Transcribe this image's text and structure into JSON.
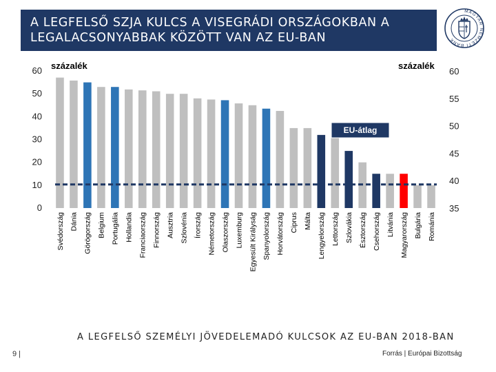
{
  "header": {
    "title_line1": "A LEGFELSŐ SZJA KULCS A VISEGRÁDI ORSZÁGOKBAN A",
    "title_line2": "LEGALACSONYABBAK KÖZÖTT VAN AZ EU-BAN"
  },
  "logo": {
    "name": "Magyar Nemzeti Bank",
    "text": "MAGYAR NEMZETI BANK"
  },
  "footer": {
    "subtitle": "A LEGFELSŐ SZEMÉLYI JÖVEDELEMADÓ KULCSOK AZ EU-BAN 2018-BAN",
    "page": "9 |",
    "source": "Forrás | Európai Bizottság"
  },
  "colors": {
    "gray": "#bfbfbf",
    "blue": "#2e75b6",
    "navy": "#1f3864",
    "red": "#ff0000",
    "title_bg": "#1f3864"
  },
  "chart_data": {
    "type": "bar",
    "title": "A LEGFELSŐ SZEMÉLYI JÖVEDELEMADÓ KULCSOK AZ EU-BAN 2018-BAN",
    "ylabel": "százalék",
    "ylabel_right": "százalék",
    "ylim": [
      0,
      60
    ],
    "yticks": [
      0,
      10,
      20,
      30,
      40,
      50,
      60
    ],
    "ylim_right": [
      35,
      60
    ],
    "yticks_right": [
      35,
      40,
      45,
      50,
      55,
      60
    ],
    "categories": [
      "Svédország",
      "Dánia",
      "Görögország",
      "Belgium",
      "Portugália",
      "Hollandia",
      "Franciaország",
      "Finnország",
      "Ausztria",
      "Szlovénia",
      "Írország",
      "Németország",
      "Olaszország",
      "Luxemburg",
      "Egyesült Királyság",
      "Spanyolország",
      "Horvátország",
      "Ciprus",
      "Málta",
      "Lengyelország",
      "Lettország",
      "Szlovákia",
      "Észtország",
      "Csehország",
      "Litvánia",
      "Magyarország",
      "Bulgária",
      "Románia"
    ],
    "values": [
      57.1,
      55.8,
      55.0,
      53.0,
      53.0,
      51.9,
      51.5,
      51.1,
      50.0,
      50.0,
      48.0,
      47.5,
      47.2,
      45.8,
      45.0,
      43.5,
      42.5,
      35.0,
      35.0,
      32.0,
      31.4,
      25.0,
      20.0,
      15.0,
      15.0,
      15.0,
      10.0,
      10.0
    ],
    "bar_colors": [
      "gray",
      "gray",
      "blue",
      "gray",
      "blue",
      "gray",
      "gray",
      "gray",
      "gray",
      "gray",
      "gray",
      "gray",
      "blue",
      "gray",
      "gray",
      "blue",
      "gray",
      "gray",
      "gray",
      "navy",
      "gray",
      "navy",
      "gray",
      "navy",
      "gray",
      "red",
      "gray",
      "gray"
    ],
    "reference_line": {
      "label": "EU-átlag",
      "value": 39.3,
      "style": "dashed"
    },
    "legend": "center-right"
  }
}
